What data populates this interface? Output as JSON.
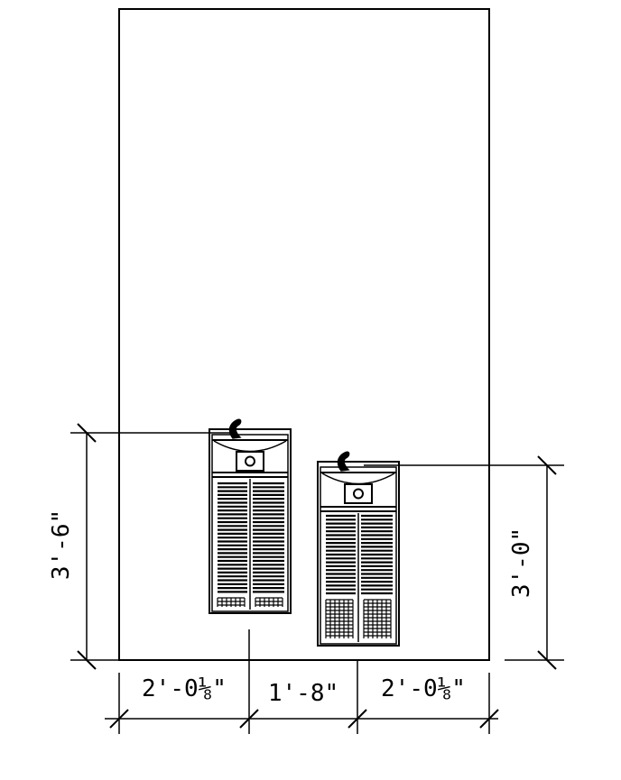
{
  "drawing": {
    "line_color": "#000000",
    "background": "#ffffff",
    "dimensions": {
      "left_height": "3'-6\"",
      "right_height": "3'-0\"",
      "bottom_left": "2'-0⅛\"",
      "bottom_middle": "1'-8\"",
      "bottom_right": "2'-0⅛\""
    },
    "fixtures": [
      {
        "name": "high-drinking-fountain"
      },
      {
        "name": "low-drinking-fountain"
      }
    ]
  }
}
